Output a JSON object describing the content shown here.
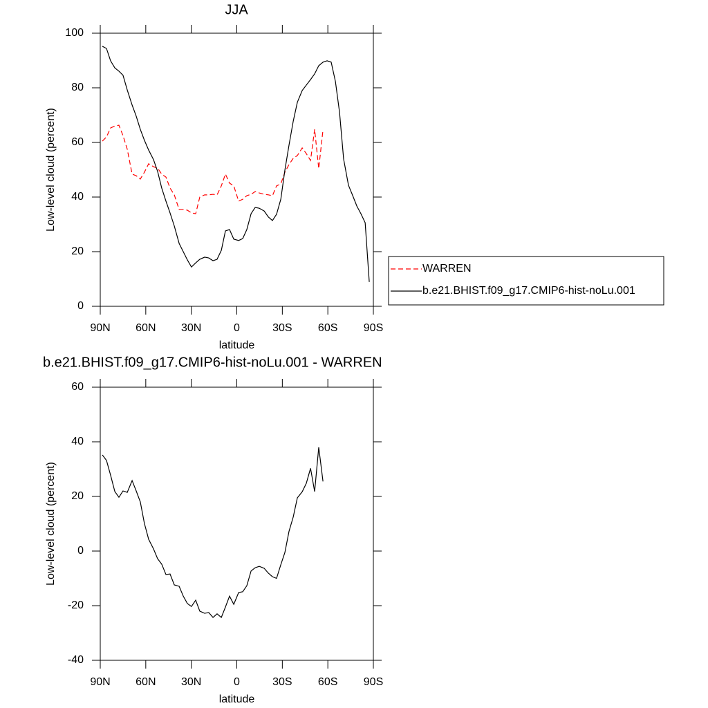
{
  "chart_data": [
    {
      "type": "line",
      "title": "JJA",
      "xlabel": "latitude",
      "ylabel": "Low-level cloud (percent)",
      "xlim": [
        90,
        -90
      ],
      "ylim": [
        0,
        100
      ],
      "xticks": [
        {
          "value": 90,
          "label": "90N"
        },
        {
          "value": 60,
          "label": "60N"
        },
        {
          "value": 30,
          "label": "30N"
        },
        0,
        {
          "value": -30,
          "label": "30S"
        },
        {
          "value": -60,
          "label": "60S"
        },
        {
          "value": -90,
          "label": "90S"
        }
      ],
      "yticks": [
        0,
        20,
        40,
        60,
        80,
        100
      ],
      "legend": "right",
      "x": [
        88.6,
        85.9,
        83.2,
        80.4,
        77.7,
        75.0,
        72.2,
        69.0,
        66.3,
        63.6,
        60.9,
        58.1,
        54.9,
        52.2,
        49.5,
        46.7,
        44.0,
        41.2,
        38.0,
        35.3,
        32.6,
        29.9,
        27.1,
        24.4,
        21.2,
        18.5,
        15.7,
        13.0,
        10.2,
        7.5,
        4.8,
        2.0,
        -1.2,
        -3.9,
        -6.6,
        -9.4,
        -12.1,
        -14.8,
        -18.0,
        -20.8,
        -23.5,
        -26.2,
        -29.0,
        -31.7,
        -34.4,
        -37.2,
        -39.9,
        -43.1,
        -45.8,
        -48.6,
        -51.3,
        -54.0,
        -56.8,
        -59.5,
        -62.2,
        -65.0,
        -67.7,
        -70.4,
        -73.6,
        -76.4,
        -79.1,
        -81.8,
        -84.6,
        -87.3
      ],
      "series": [
        {
          "name": "WARREN",
          "color": "#ff0000",
          "style": "dashed",
          "values": [
            60.5,
            62.0,
            65.3,
            66.0,
            66.3,
            62.5,
            57.5,
            48.4,
            47.8,
            46.6,
            49.1,
            52.2,
            51.1,
            50.6,
            48.4,
            47.3,
            43.3,
            40.8,
            35.4,
            35.4,
            35.2,
            34.2,
            33.9,
            40.0,
            40.8,
            40.8,
            41.0,
            40.8,
            44.1,
            48.4,
            45.1,
            44.1,
            38.5,
            39.2,
            40.5,
            41.0,
            42.0,
            41.5,
            41.0,
            40.8,
            40.5,
            44.1,
            44.8,
            49.1,
            51.9,
            54.2,
            55.2,
            58.0,
            55.9,
            53.4,
            64.8,
            50.4,
            64.6,
            null,
            null,
            null,
            null,
            null,
            null,
            null,
            null,
            null,
            null,
            null
          ]
        },
        {
          "name": "b.e21.BHIST.f09_g17.CMIP6-hist-noLu.001",
          "color": "#000000",
          "style": "solid",
          "values": [
            95.2,
            94.4,
            89.9,
            87.3,
            86.1,
            84.6,
            79.2,
            73.7,
            69.6,
            64.8,
            60.8,
            57.2,
            53.7,
            49.4,
            43.3,
            38.5,
            34.2,
            29.4,
            23.0,
            20.0,
            17.0,
            14.4,
            15.9,
            17.2,
            18.0,
            17.7,
            16.7,
            17.2,
            20.5,
            27.6,
            28.1,
            24.6,
            24.1,
            24.8,
            28.1,
            33.9,
            36.2,
            35.9,
            34.9,
            32.7,
            31.4,
            33.7,
            39.2,
            49.9,
            59.0,
            67.8,
            74.7,
            79.0,
            81.0,
            83.0,
            85.1,
            88.1,
            89.4,
            89.9,
            89.4,
            82.3,
            71.1,
            53.9,
            44.3,
            40.5,
            36.7,
            33.9,
            30.6,
            8.9
          ]
        }
      ]
    },
    {
      "type": "line",
      "title": "b.e21.BHIST.f09_g17.CMIP6-hist-noLu.001 - WARREN",
      "xlabel": "latitude",
      "ylabel": "Low-level cloud (percent)",
      "xlim": [
        90,
        -90
      ],
      "ylim": [
        -40,
        60
      ],
      "xticks": [
        {
          "value": 90,
          "label": "90N"
        },
        {
          "value": 60,
          "label": "60N"
        },
        {
          "value": 30,
          "label": "30N"
        },
        0,
        {
          "value": -30,
          "label": "30S"
        },
        {
          "value": -60,
          "label": "60S"
        },
        {
          "value": -90,
          "label": "90S"
        }
      ],
      "yticks": [
        -40,
        -20,
        0,
        20,
        40,
        60
      ],
      "x": [
        88.6,
        85.9,
        83.2,
        80.4,
        77.7,
        75.0,
        72.2,
        69.0,
        66.3,
        63.6,
        60.9,
        58.1,
        54.9,
        52.2,
        49.5,
        46.7,
        44.0,
        41.2,
        38.0,
        35.3,
        32.6,
        29.9,
        27.1,
        24.4,
        21.2,
        18.5,
        15.7,
        13.0,
        10.2,
        7.5,
        4.8,
        2.0,
        -1.2,
        -3.9,
        -6.6,
        -9.4,
        -12.1,
        -14.8,
        -18.0,
        -20.8,
        -23.5,
        -26.2,
        -29.0,
        -31.7,
        -34.4,
        -37.2,
        -39.9,
        -43.1,
        -45.8,
        -48.6,
        -51.3,
        -54.0,
        -56.8,
        -59.5,
        -62.2,
        -65.0,
        -67.7,
        -70.4,
        -73.6,
        -76.4,
        -79.1,
        -81.8,
        -84.6,
        -87.3
      ],
      "series": [
        {
          "color": "#000000",
          "style": "solid",
          "values": [
            35.2,
            33.2,
            27.8,
            21.8,
            19.7,
            22.0,
            21.5,
            25.8,
            22.0,
            18.0,
            10.1,
            4.3,
            0.8,
            -2.8,
            -4.8,
            -8.6,
            -8.4,
            -12.4,
            -12.9,
            -16.5,
            -19.2,
            -20.3,
            -18.0,
            -22.0,
            -22.8,
            -22.5,
            -24.3,
            -23.0,
            -24.3,
            -20.5,
            -16.5,
            -19.5,
            -15.2,
            -14.9,
            -12.7,
            -7.3,
            -6.1,
            -5.6,
            -6.3,
            -8.1,
            -9.4,
            -10.0,
            -5.0,
            -0.5,
            7.2,
            12.5,
            19.5,
            21.7,
            24.8,
            30.3,
            21.8,
            38.0,
            25.5,
            null,
            null,
            null,
            null,
            null,
            null,
            null,
            null,
            null,
            null,
            null
          ]
        }
      ]
    }
  ]
}
